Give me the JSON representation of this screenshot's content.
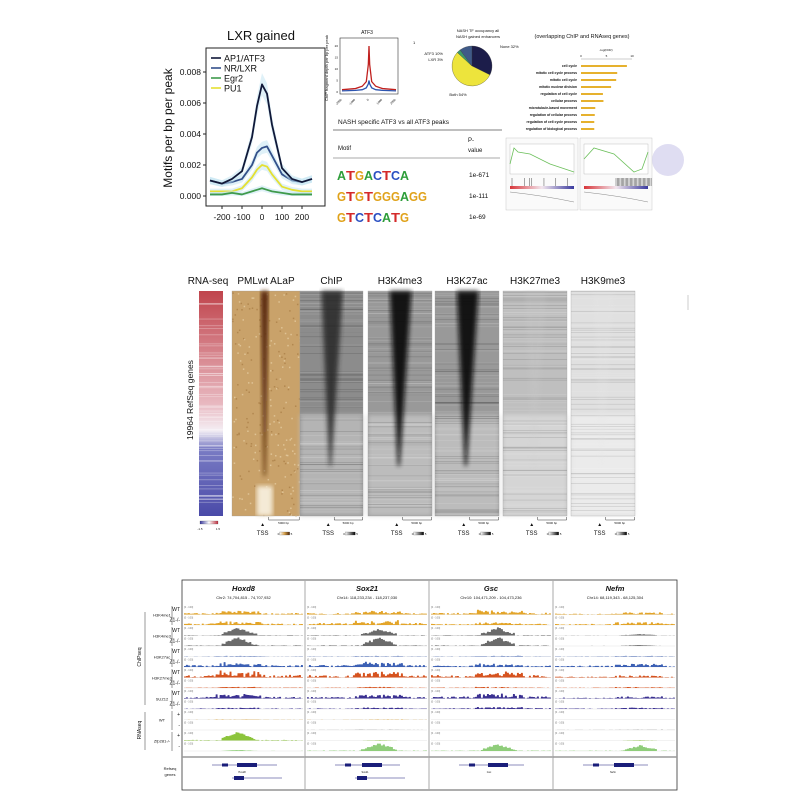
{
  "panel_a": {
    "title": "LXR gained",
    "ylabel": "Motifs per bp per peak"
  },
  "atf3_plot": {
    "title": "ATF3",
    "ylabel": "ChIP fragment depth per bp per peak",
    "corner_label": "1"
  },
  "pie": {
    "title_line1": "NASH TF occupancy all",
    "title_line2": "NASH gained enhancers"
  },
  "go_bar": {
    "title": "(overlapping ChIP and RNAseq genes)",
    "xlabel": "-log(FDR)"
  },
  "motif_table": {
    "title": "NASH specific ATF3 vs all ATF3 peaks",
    "col_motif": "Motif",
    "col_p1": "P-",
    "col_p2": "value",
    "rows": [
      {
        "motif": "ATGACTCA",
        "p": "1e-671"
      },
      {
        "motif": "GTGTGGGAGG",
        "p": "1e-111"
      },
      {
        "motif": "GTCTCATG",
        "p": "1e-69"
      }
    ]
  },
  "motif_colors": {
    "A": "#2e9e3a",
    "C": "#2b4fc2",
    "G": "#e0a21a",
    "T": "#d42a2a"
  },
  "heatmaps": {
    "ylabel": "19964 RefSeq genes",
    "tss": "TSS",
    "scale": "5000 bp",
    "legend_min": "0",
    "legend_max": "5",
    "rna_min": "-1.5",
    "rna_max": "1.5",
    "columns": [
      {
        "label": "RNA-seq",
        "kind": "rna"
      },
      {
        "label": "PMLwt ALaP",
        "kind": "brown"
      },
      {
        "label": "ChIP",
        "kind": "gray",
        "strength": 0.85,
        "base": 0.45
      },
      {
        "label": "H3K4me3",
        "kind": "gray",
        "strength": 0.95,
        "base": 0.4
      },
      {
        "label": "H3K27ac",
        "kind": "gray",
        "strength": 0.95,
        "base": 0.4
      },
      {
        "label": "H3K27me3",
        "kind": "gray",
        "strength": 0.2,
        "base": 0.25
      },
      {
        "label": "H3K9me3",
        "kind": "gray",
        "strength": 0.1,
        "base": 0.12
      }
    ]
  },
  "browser": {
    "loci": [
      {
        "gene": "Hoxd8",
        "coords": "Chr2: 74,704,815 - 74,707,932"
      },
      {
        "gene": "Sox21",
        "coords": "Chr14: 118,233,234 - 118,237,030"
      },
      {
        "gene": "Gsc",
        "coords": "Chr10: 104,471,209 - 104,473,236"
      },
      {
        "gene": "Nefm",
        "coords": "Chr14: 68,119,343 - 68,125,304"
      }
    ],
    "groups": [
      {
        "label": "H3K4me1",
        "tracks": [
          "WT",
          "Z1-/-"
        ]
      },
      {
        "label": "H3K4me3",
        "tracks": [
          "WT",
          "Z1-/-"
        ]
      },
      {
        "label": "H3K27ac",
        "tracks": [
          "WT",
          "Z1-/-"
        ]
      },
      {
        "label": "H3K27me3",
        "tracks": [
          "WT",
          "Z1-/-"
        ]
      },
      {
        "label": "SUZ12",
        "tracks": [
          "WT",
          "Z1-/-"
        ]
      },
      {
        "label": "WT",
        "tracks": [
          "+",
          "-"
        ]
      },
      {
        "label": "Zfp281-/-",
        "tracks": [
          "+",
          "-"
        ]
      }
    ],
    "chipseq_label": "ChIPseq",
    "rnaseq_label": "RNAseq",
    "refseq_label_1": "Refseq",
    "refseq_label_2": "genes",
    "track_colors": [
      "#e3a52a",
      "#e3a52a",
      "#6b6b6b",
      "#6b6b6b",
      "#3c60b4",
      "#3c60b4",
      "#d6531f",
      "#d6531f",
      "#3b3192",
      "#3b3192",
      "#e3a52a",
      "#999999",
      "#8cc43c",
      "#8fcd7a"
    ],
    "track_levels": [
      [
        0.5,
        0.5,
        0.6,
        0.3
      ],
      [
        0.5,
        0.7,
        0.4,
        0.4
      ],
      [
        0.8,
        0.7,
        0.8,
        0.15
      ],
      [
        0.9,
        0.9,
        0.9,
        0.1
      ],
      [
        0.08,
        0.08,
        0.1,
        0.1
      ],
      [
        0.7,
        0.7,
        0.5,
        0.5
      ],
      [
        0.9,
        0.8,
        0.8,
        0.3
      ],
      [
        0.15,
        0.15,
        0.15,
        0.15
      ],
      [
        0.6,
        0.6,
        0.7,
        0.3
      ],
      [
        0.2,
        0.2,
        0.3,
        0.2
      ],
      [
        0.05,
        0.05,
        0.0,
        0.0
      ],
      [
        0.0,
        0.05,
        0.0,
        0.05
      ],
      [
        0.9,
        0.05,
        0.0,
        0.05
      ],
      [
        0.1,
        0.8,
        0.7,
        0.6
      ]
    ],
    "peak_centers": [
      0.45,
      0.6,
      0.55,
      0.7
    ]
  },
  "chart_data": [
    {
      "type": "line",
      "title": "LXR gained",
      "xlabel": "",
      "ylabel": "Motifs per bp per peak",
      "xlim": [
        -270,
        250
      ],
      "ylim": [
        -0.0002,
        0.0095
      ],
      "xticks": [
        -200,
        -100,
        0,
        100,
        200
      ],
      "yticks": [
        "0.000",
        "0.002",
        "0.004",
        "0.006",
        "0.008"
      ],
      "legend": "top-left",
      "x": [
        -260,
        -200,
        -150,
        -100,
        -50,
        -25,
        0,
        25,
        50,
        100,
        150,
        200,
        250
      ],
      "series": [
        {
          "name": "AP1/ATF3",
          "color": "#101838",
          "values": [
            0.001,
            0.0008,
            0.0011,
            0.0016,
            0.0038,
            0.0058,
            0.0072,
            0.0066,
            0.0046,
            0.0018,
            0.0011,
            0.0009,
            0.0011
          ]
        },
        {
          "name": "NR/LXR",
          "color": "#33508a",
          "values": [
            0.001,
            0.0008,
            0.0009,
            0.0011,
            0.002,
            0.0028,
            0.0031,
            0.0032,
            0.0026,
            0.0014,
            0.001,
            0.0009,
            0.0011
          ]
        },
        {
          "name": "Egr2",
          "color": "#3f9a4c",
          "values": [
            0.0001,
            0.0001,
            0.0002,
            0.0001,
            0.0003,
            0.0004,
            0.0005,
            0.0004,
            0.0003,
            0.0002,
            0.0001,
            0.0001,
            0.0001
          ]
        },
        {
          "name": "PU1",
          "color": "#e4e032",
          "values": [
            0.0003,
            0.0003,
            0.0003,
            0.0005,
            0.0012,
            0.0017,
            0.002,
            0.0019,
            0.0014,
            0.0006,
            0.0004,
            0.0003,
            0.0003
          ]
        }
      ]
    },
    {
      "type": "line",
      "title": "ATF3",
      "ylabel": "ChIP fragment depth per bp per peak",
      "xticks": [
        -2000,
        -1000,
        0,
        1000,
        2000
      ],
      "yticks": [
        0,
        5,
        10,
        15,
        20
      ],
      "xlim": [
        -2000,
        2000
      ],
      "ylim": [
        0,
        22
      ],
      "x": [
        -2000,
        -1000,
        -500,
        -200,
        -50,
        0,
        50,
        200,
        500,
        1000,
        2000
      ],
      "series": [
        {
          "color": "#c0201e",
          "values": [
            1,
            1.5,
            2.5,
            4.5,
            12,
            20,
            12,
            4.5,
            2.5,
            1.5,
            1
          ]
        },
        {
          "color": "#2d55b0",
          "values": [
            0.5,
            0.7,
            1,
            1.8,
            3.5,
            5,
            3.5,
            1.8,
            1,
            0.7,
            0.5
          ]
        }
      ]
    },
    {
      "type": "pie",
      "title": "NASH TF occupancy all NASH gained enhancers",
      "slices": [
        {
          "label": "None 32%",
          "value": 32,
          "color": "#1c1d4a"
        },
        {
          "label": "Both 54%",
          "value": 54,
          "color": "#ede43c"
        },
        {
          "label": "LXR 3%",
          "value": 3,
          "color": "#3d9a6a"
        },
        {
          "label": "ATF3 10%",
          "value": 10,
          "color": "#3f5a88"
        }
      ]
    },
    {
      "type": "bar",
      "orientation": "horizontal",
      "title": "(overlapping ChIP and RNAseq genes)",
      "xlabel": "-log(FDR)",
      "xlim": [
        0,
        10
      ],
      "xticks": [
        0,
        5,
        10
      ],
      "color": "#e6b12e",
      "categories": [
        "cell cycle",
        "mitotic cell cycle process",
        "mitotic cell cycle",
        "mitotic nuclear division",
        "regulation of cell cycle",
        "cellular process",
        "microtubule-based movement",
        "regulation of cellular process",
        "regulation of cell cycle process",
        "regulation of biological process"
      ],
      "values": [
        9.0,
        7.1,
        6.9,
        5.9,
        4.3,
        4.4,
        2.8,
        2.7,
        2.6,
        2.6
      ]
    }
  ]
}
